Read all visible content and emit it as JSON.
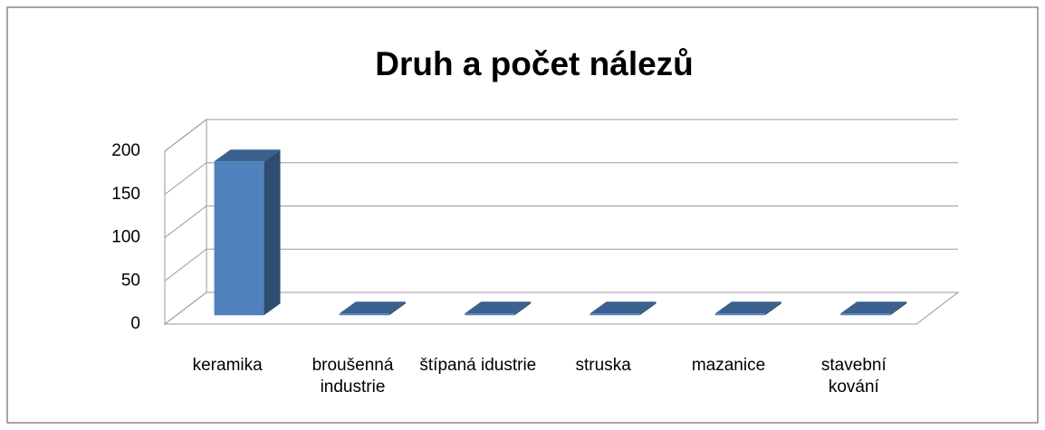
{
  "chart_data": {
    "type": "bar3d",
    "title": "Druh a počet nálezů",
    "categories": [
      "keramika",
      "broušenná industrie",
      "štípaná idustrie",
      "struska",
      "mazanice",
      "stavební kování"
    ],
    "values": [
      178,
      2,
      2,
      2,
      2,
      2
    ],
    "color": "#4f81bd",
    "ylim": [
      0,
      200
    ],
    "yticks": [
      0,
      50,
      100,
      150,
      200
    ],
    "grid": true
  }
}
